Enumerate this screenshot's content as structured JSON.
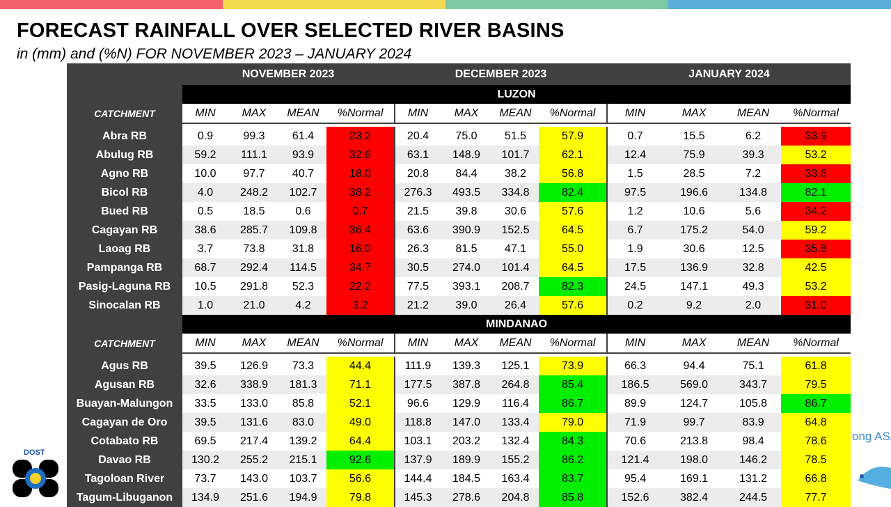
{
  "colors": {
    "bar": [
      "#f4606c",
      "#f4d94e",
      "#7ec8a2",
      "#5aaedc"
    ],
    "red": "#ff0000",
    "yellow": "#ffff00",
    "green": "#00ee00",
    "header": "#404040"
  },
  "title": "FORECAST RAINFALL OVER SELECTED RIVER BASINS",
  "subtitle": "in (mm) and (%N) FOR  NOVEMBER 2023 – JANUARY 2024",
  "months": [
    "NOVEMBER 2023",
    "DECEMBER 2023",
    "JANUARY 2024"
  ],
  "catchment_label": "CATCHMENT",
  "subheaders": [
    "MIN",
    "MAX",
    "MEAN",
    "%Normal"
  ],
  "regions": [
    {
      "name": "LUZON",
      "rows": [
        {
          "name": "Abra RB",
          "values": [
            [
              "0.9",
              "99.3",
              "61.4",
              "23.2"
            ],
            [
              "20.4",
              "75.0",
              "51.5",
              "57.9"
            ],
            [
              "0.7",
              "15.5",
              "6.2",
              "33.9"
            ]
          ],
          "status": [
            "red",
            "yellow",
            "red"
          ]
        },
        {
          "name": "Abulug RB",
          "values": [
            [
              "59.2",
              "111.1",
              "93.9",
              "32.6"
            ],
            [
              "63.1",
              "148.9",
              "101.7",
              "62.1"
            ],
            [
              "12.4",
              "75.9",
              "39.3",
              "53.2"
            ]
          ],
          "status": [
            "red",
            "yellow",
            "yellow"
          ]
        },
        {
          "name": "Agno RB",
          "values": [
            [
              "10.0",
              "97.7",
              "40.7",
              "18.0"
            ],
            [
              "20.8",
              "84.4",
              "38.2",
              "56.8"
            ],
            [
              "1.5",
              "28.5",
              "7.2",
              "33.6"
            ]
          ],
          "status": [
            "red",
            "yellow",
            "red"
          ]
        },
        {
          "name": "Bicol RB",
          "values": [
            [
              "4.0",
              "248.2",
              "102.7",
              "38.2"
            ],
            [
              "276.3",
              "493.5",
              "334.8",
              "82.4"
            ],
            [
              "97.5",
              "196.6",
              "134.8",
              "82.1"
            ]
          ],
          "status": [
            "red",
            "green",
            "green"
          ]
        },
        {
          "name": "Bued RB",
          "values": [
            [
              "0.5",
              "18.5",
              "0.6",
              "0.7"
            ],
            [
              "21.5",
              "39.8",
              "30.6",
              "57.6"
            ],
            [
              "1.2",
              "10.6",
              "5.6",
              "34.2"
            ]
          ],
          "status": [
            "red",
            "yellow",
            "red"
          ]
        },
        {
          "name": "Cagayan RB",
          "values": [
            [
              "38.6",
              "285.7",
              "109.8",
              "36.4"
            ],
            [
              "63.6",
              "390.9",
              "152.5",
              "64.5"
            ],
            [
              "6.7",
              "175.2",
              "54.0",
              "59.2"
            ]
          ],
          "status": [
            "red",
            "yellow",
            "yellow"
          ]
        },
        {
          "name": "Laoag RB",
          "values": [
            [
              "3.7",
              "73.8",
              "31.8",
              "16.0"
            ],
            [
              "26.3",
              "81.5",
              "47.1",
              "55.0"
            ],
            [
              "1.9",
              "30.6",
              "12.5",
              "35.8"
            ]
          ],
          "status": [
            "red",
            "yellow",
            "red"
          ]
        },
        {
          "name": "Pampanga RB",
          "values": [
            [
              "68.7",
              "292.4",
              "114.5",
              "34.7"
            ],
            [
              "30.5",
              "274.0",
              "101.4",
              "64.5"
            ],
            [
              "17.5",
              "136.9",
              "32.8",
              "42.5"
            ]
          ],
          "status": [
            "red",
            "yellow",
            "yellow"
          ]
        },
        {
          "name": "Pasig-Laguna RB",
          "values": [
            [
              "10.5",
              "291.8",
              "52.3",
              "22.2"
            ],
            [
              "77.5",
              "393.1",
              "208.7",
              "82.3"
            ],
            [
              "24.5",
              "147.1",
              "49.3",
              "53.2"
            ]
          ],
          "status": [
            "red",
            "green",
            "yellow"
          ]
        },
        {
          "name": "Sinocalan RB",
          "values": [
            [
              "1.0",
              "21.0",
              "4.2",
              "3.2"
            ],
            [
              "21.2",
              "39.0",
              "26.4",
              "57.6"
            ],
            [
              "0.2",
              "9.2",
              "2.0",
              "31.0"
            ]
          ],
          "status": [
            "red",
            "yellow",
            "red"
          ]
        }
      ]
    },
    {
      "name": "MINDANAO",
      "rows": [
        {
          "name": "Agus RB",
          "values": [
            [
              "39.5",
              "126.9",
              "73.3",
              "44.4"
            ],
            [
              "111.9",
              "139.3",
              "125.1",
              "73.9"
            ],
            [
              "66.3",
              "94.4",
              "75.1",
              "61.8"
            ]
          ],
          "status": [
            "yellow",
            "yellow",
            "yellow"
          ]
        },
        {
          "name": "Agusan RB",
          "values": [
            [
              "32.6",
              "338.9",
              "181.3",
              "71.1"
            ],
            [
              "177.5",
              "387.8",
              "264.8",
              "85.4"
            ],
            [
              "186.5",
              "569.0",
              "343.7",
              "79.5"
            ]
          ],
          "status": [
            "yellow",
            "green",
            "yellow"
          ]
        },
        {
          "name": "Buayan-Malungon",
          "values": [
            [
              "33.5",
              "133.0",
              "85.8",
              "52.1"
            ],
            [
              "96.6",
              "129.9",
              "116.4",
              "86.7"
            ],
            [
              "89.9",
              "124.7",
              "105.8",
              "86.7"
            ]
          ],
          "status": [
            "yellow",
            "green",
            "green"
          ]
        },
        {
          "name": "Cagayan de Oro",
          "values": [
            [
              "39.5",
              "131.6",
              "83.0",
              "49.0"
            ],
            [
              "118.8",
              "147.0",
              "133.4",
              "79.0"
            ],
            [
              "71.9",
              "99.7",
              "83.9",
              "64.8"
            ]
          ],
          "status": [
            "yellow",
            "yellow",
            "yellow"
          ]
        },
        {
          "name": "Cotabato RB",
          "values": [
            [
              "69.5",
              "217.4",
              "139.2",
              "64.4"
            ],
            [
              "103.1",
              "203.2",
              "132.4",
              "84.3"
            ],
            [
              "70.6",
              "213.8",
              "98.4",
              "78.6"
            ]
          ],
          "status": [
            "yellow",
            "green",
            "yellow"
          ]
        },
        {
          "name": "Davao RB",
          "values": [
            [
              "130.2",
              "255.2",
              "215.1",
              "92.6"
            ],
            [
              "137.9",
              "189.9",
              "155.2",
              "86.2"
            ],
            [
              "121.4",
              "198.0",
              "146.2",
              "78.5"
            ]
          ],
          "status": [
            "green",
            "green",
            "yellow"
          ]
        },
        {
          "name": "Tagoloan River",
          "values": [
            [
              "73.7",
              "143.0",
              "103.7",
              "56.6"
            ],
            [
              "144.4",
              "184.5",
              "163.4",
              "83.7"
            ],
            [
              "95.4",
              "169.1",
              "131.2",
              "66.8"
            ]
          ],
          "status": [
            "yellow",
            "green",
            "yellow"
          ]
        },
        {
          "name": "Tagum-Libuganon",
          "values": [
            [
              "134.9",
              "251.6",
              "194.9",
              "79.8"
            ],
            [
              "145.3",
              "278.6",
              "204.8",
              "85.8"
            ],
            [
              "152.6",
              "382.4",
              "244.5",
              "77.7"
            ]
          ],
          "status": [
            "yellow",
            "green",
            "yellow"
          ]
        }
      ]
    }
  ],
  "logos": {
    "left": {
      "text": "DOST",
      "icon": "dost-logo-icon"
    },
    "right": {
      "text": "ong ASA",
      "icon": "pagasa-logo-icon"
    }
  }
}
